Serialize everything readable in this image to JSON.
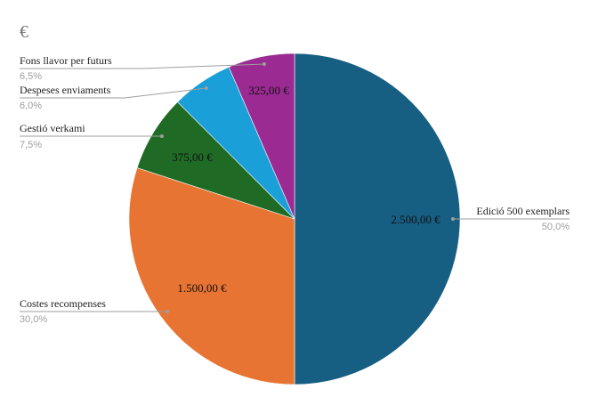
{
  "chart_data": {
    "type": "pie",
    "title": "€",
    "slices": [
      {
        "name": "Edició 500 exemplars",
        "value": 2500,
        "value_label": "2.500,00 €",
        "percent_label": "50,0%",
        "color": "#165e82"
      },
      {
        "name": "Costes recompenses",
        "value": 1500,
        "value_label": "1.500,00 €",
        "percent_label": "30,0%",
        "color": "#e87433"
      },
      {
        "name": "Gestió verkami",
        "value": 375,
        "value_label": "375,00 €",
        "percent_label": "7,5%",
        "color": "#1f6b26"
      },
      {
        "name": "Despeses enviaments",
        "value": 300,
        "value_label": "",
        "percent_label": "6,0%",
        "color": "#1a9fd9"
      },
      {
        "name": "Fons llavor per futurs",
        "value": 325,
        "value_label": "325,00 €",
        "percent_label": "6,5%",
        "color": "#9b2a92"
      }
    ]
  }
}
